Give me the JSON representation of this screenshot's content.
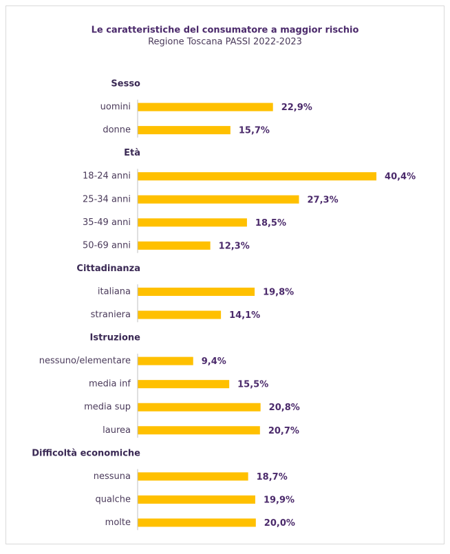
{
  "chart_data": {
    "type": "bar",
    "orientation": "horizontal",
    "title": "Le caratteristiche del consumatore a maggior rischio",
    "subtitle": "Regione Toscana PASSI 2022-2023",
    "color": "#ffc000",
    "groups": [
      {
        "name": "Sesso",
        "categories": [
          "uomini",
          "donne"
        ],
        "values": [
          22.9,
          15.7
        ],
        "value_labels": [
          "22,9%",
          "15,7%"
        ]
      },
      {
        "name": "Età",
        "categories": [
          "18-24 anni",
          "25-34 anni",
          "35-49 anni",
          "50-69 anni"
        ],
        "values": [
          40.4,
          27.3,
          18.5,
          12.3
        ],
        "value_labels": [
          "40,4%",
          "27,3%",
          "18,5%",
          "12,3%"
        ]
      },
      {
        "name": "Cittadinanza",
        "categories": [
          "italiana",
          "straniera"
        ],
        "values": [
          19.8,
          14.1
        ],
        "value_labels": [
          "19,8%",
          "14,1%"
        ]
      },
      {
        "name": "Istruzione",
        "categories": [
          "nessuno/elementare",
          "media inf",
          "media sup",
          "laurea"
        ],
        "values": [
          9.4,
          15.5,
          20.8,
          20.7
        ],
        "value_labels": [
          "9,4%",
          "15,5%",
          "20,8%",
          "20,7%"
        ]
      },
      {
        "name": "Difficoltà economiche",
        "categories": [
          "nessuna",
          "qualche",
          "molte"
        ],
        "values": [
          18.7,
          19.9,
          20.0
        ],
        "value_labels": [
          "18,7%",
          "19,9%",
          "20,0%"
        ]
      }
    ]
  }
}
